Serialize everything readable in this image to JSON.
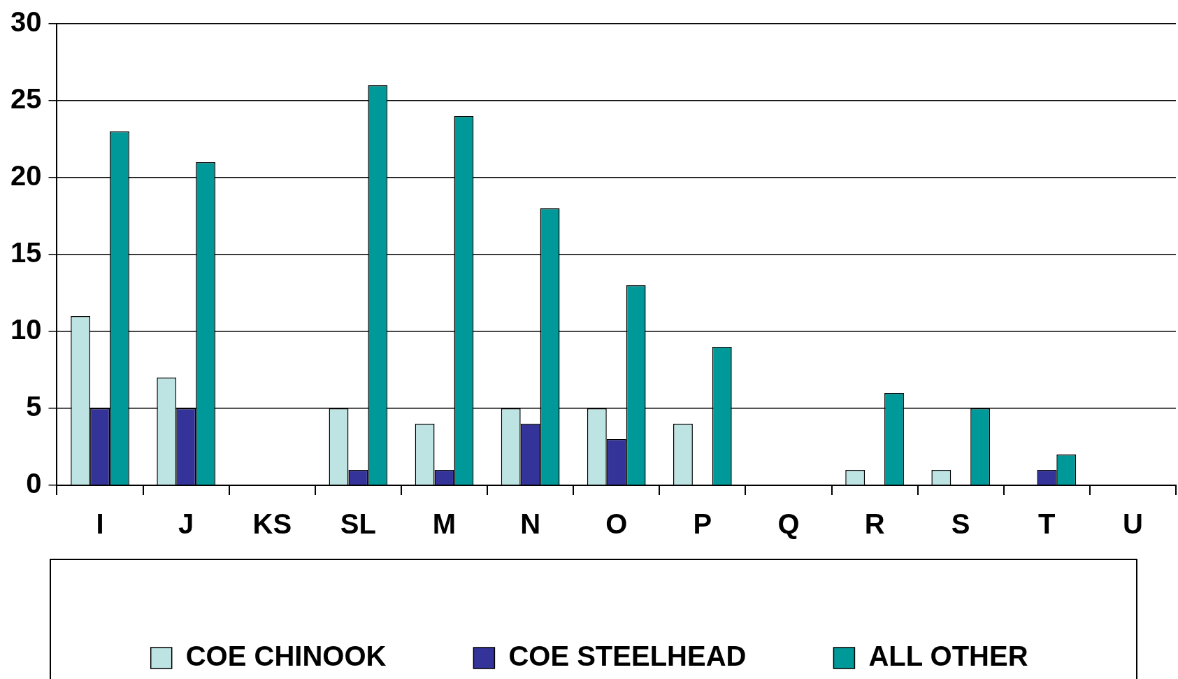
{
  "chart_data": {
    "type": "bar",
    "categories": [
      "I",
      "J",
      "KS",
      "SL",
      "M",
      "N",
      "O",
      "P",
      "Q",
      "R",
      "S",
      "T",
      "U"
    ],
    "series": [
      {
        "name": "COE CHINOOK",
        "color": "#bde3e3",
        "values": [
          11,
          7,
          0,
          5,
          4,
          5,
          5,
          4,
          0,
          1,
          1,
          0,
          0
        ]
      },
      {
        "name": "COE STEELHEAD",
        "color": "#333399",
        "values": [
          5,
          5,
          0,
          1,
          1,
          4,
          3,
          0,
          0,
          0,
          0,
          1,
          0
        ]
      },
      {
        "name": "ALL OTHER",
        "color": "#009999",
        "values": [
          23,
          21,
          0,
          26,
          24,
          18,
          13,
          9,
          0,
          6,
          5,
          2,
          0
        ]
      }
    ],
    "ylim": [
      0,
      30
    ],
    "yticks": [
      0,
      5,
      10,
      15,
      20,
      25,
      30
    ],
    "grid": "y",
    "legend": "bottom"
  }
}
